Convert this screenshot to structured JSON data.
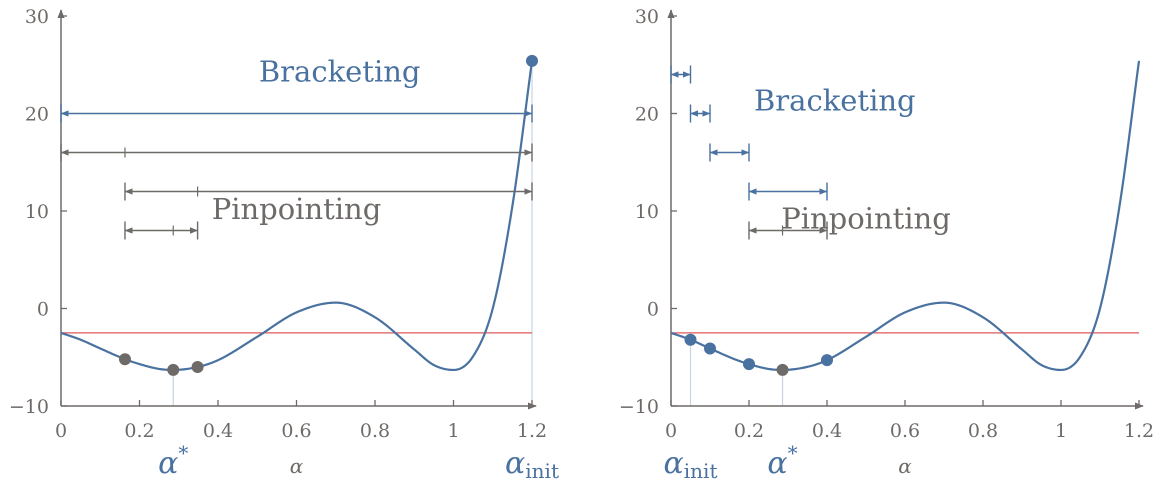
{
  "colors": {
    "curve": "#4a72a0",
    "bracket": "#4a72a0",
    "pinpoint": "#6e6a68",
    "axis": "#6e6a68",
    "threshold": "#e05a5a",
    "guide": "#c9d4e0"
  },
  "chart_data": [
    {
      "type": "line",
      "title": "",
      "xlabel": "α",
      "ylabel": "",
      "xlim": [
        0,
        1.2
      ],
      "ylim": [
        -10,
        30
      ],
      "xticks": [
        "0",
        "0.2",
        "0.4",
        "0.6",
        "0.8",
        "1",
        "1.2"
      ],
      "yticks": [
        "−10",
        "0",
        "10",
        "20",
        "30"
      ],
      "threshold_y": -2.5,
      "annotations": [
        {
          "text": "Bracketing",
          "x": 0.71,
          "y": 23.3,
          "style": "bracket"
        },
        {
          "text": "Pinpointing",
          "x": 0.6,
          "y": 9.2,
          "style": "pinpoint"
        },
        {
          "text": "α*",
          "x": 0.286,
          "style": "bracket",
          "below_axis": true
        },
        {
          "text": "αinit",
          "x": 1.2,
          "style": "bracket",
          "below_axis": true
        }
      ],
      "points": [
        {
          "x": 1.2,
          "y": 25.4,
          "style": "bracket"
        },
        {
          "x": 0.163,
          "y": -5.2,
          "style": "pinpoint"
        },
        {
          "x": 0.286,
          "y": -6.3,
          "style": "pinpoint"
        },
        {
          "x": 0.348,
          "y": -6.0,
          "style": "pinpoint"
        }
      ],
      "guides_x": [
        0.286,
        1.2
      ],
      "intervals": [
        {
          "x1": 0,
          "x2": 1.2,
          "y": 20,
          "style": "bracket",
          "ticks": []
        },
        {
          "x1": 0,
          "x2": 1.2,
          "y": 16,
          "style": "pinpoint",
          "ticks": [
            0.163
          ]
        },
        {
          "x1": 0.163,
          "x2": 1.2,
          "y": 12,
          "style": "pinpoint",
          "ticks": [
            0.348
          ]
        },
        {
          "x1": 0.163,
          "x2": 0.348,
          "y": 8,
          "style": "pinpoint",
          "ticks": [
            0.286
          ]
        }
      ]
    },
    {
      "type": "line",
      "title": "",
      "xlabel": "α",
      "ylabel": "",
      "xlim": [
        0,
        1.2
      ],
      "ylim": [
        -10,
        30
      ],
      "xticks": [
        "0",
        "0.2",
        "0.4",
        "0.6",
        "0.8",
        "1",
        "1.2"
      ],
      "yticks": [
        "−10",
        "0",
        "10",
        "20",
        "30"
      ],
      "threshold_y": -2.5,
      "annotations": [
        {
          "text": "Bracketing",
          "x": 0.42,
          "y": 20.3,
          "style": "bracket"
        },
        {
          "text": "Pinpointing",
          "x": 0.5,
          "y": 8.2,
          "style": "pinpoint"
        },
        {
          "text": "αinit",
          "x": 0.05,
          "style": "bracket",
          "below_axis": true
        },
        {
          "text": "α*",
          "x": 0.286,
          "style": "bracket",
          "below_axis": true
        }
      ],
      "points": [
        {
          "x": 0.05,
          "y": -3.2,
          "style": "bracket"
        },
        {
          "x": 0.1,
          "y": -4.1,
          "style": "bracket"
        },
        {
          "x": 0.2,
          "y": -5.7,
          "style": "bracket"
        },
        {
          "x": 0.4,
          "y": -5.3,
          "style": "bracket"
        },
        {
          "x": 0.286,
          "y": -6.3,
          "style": "pinpoint"
        }
      ],
      "guides_x": [
        0.05,
        0.286
      ],
      "intervals": [
        {
          "x1": 0,
          "x2": 0.05,
          "y": 24,
          "style": "bracket",
          "ticks": []
        },
        {
          "x1": 0.05,
          "x2": 0.1,
          "y": 20,
          "style": "bracket",
          "ticks": []
        },
        {
          "x1": 0.1,
          "x2": 0.2,
          "y": 16,
          "style": "bracket",
          "ticks": []
        },
        {
          "x1": 0.2,
          "x2": 0.4,
          "y": 12,
          "style": "bracket",
          "ticks": []
        },
        {
          "x1": 0.2,
          "x2": 0.4,
          "y": 8,
          "style": "pinpoint",
          "ticks": [
            0.286
          ]
        }
      ]
    }
  ]
}
